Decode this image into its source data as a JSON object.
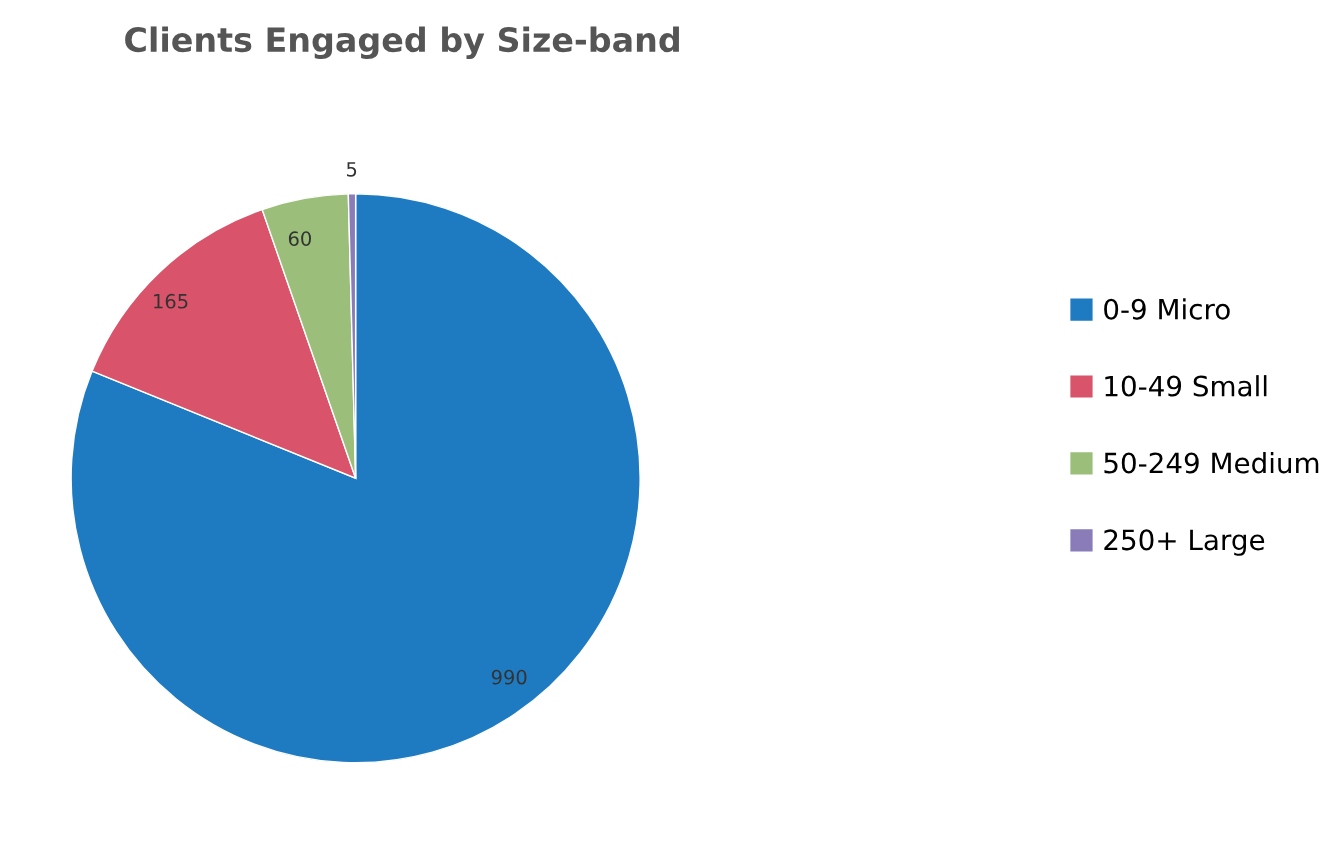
{
  "chart_data": {
    "type": "pie",
    "title": "Clients Engaged by Size-band",
    "categories": [
      "0-9 Micro",
      "10-49 Small",
      "50-249 Medium",
      "250+ Large"
    ],
    "values": [
      990,
      165,
      60,
      5
    ],
    "colors": [
      "#1f7bc1",
      "#d9546a",
      "#9bbf7a",
      "#8a7cb8"
    ],
    "data_labels": true,
    "legend": "right"
  }
}
